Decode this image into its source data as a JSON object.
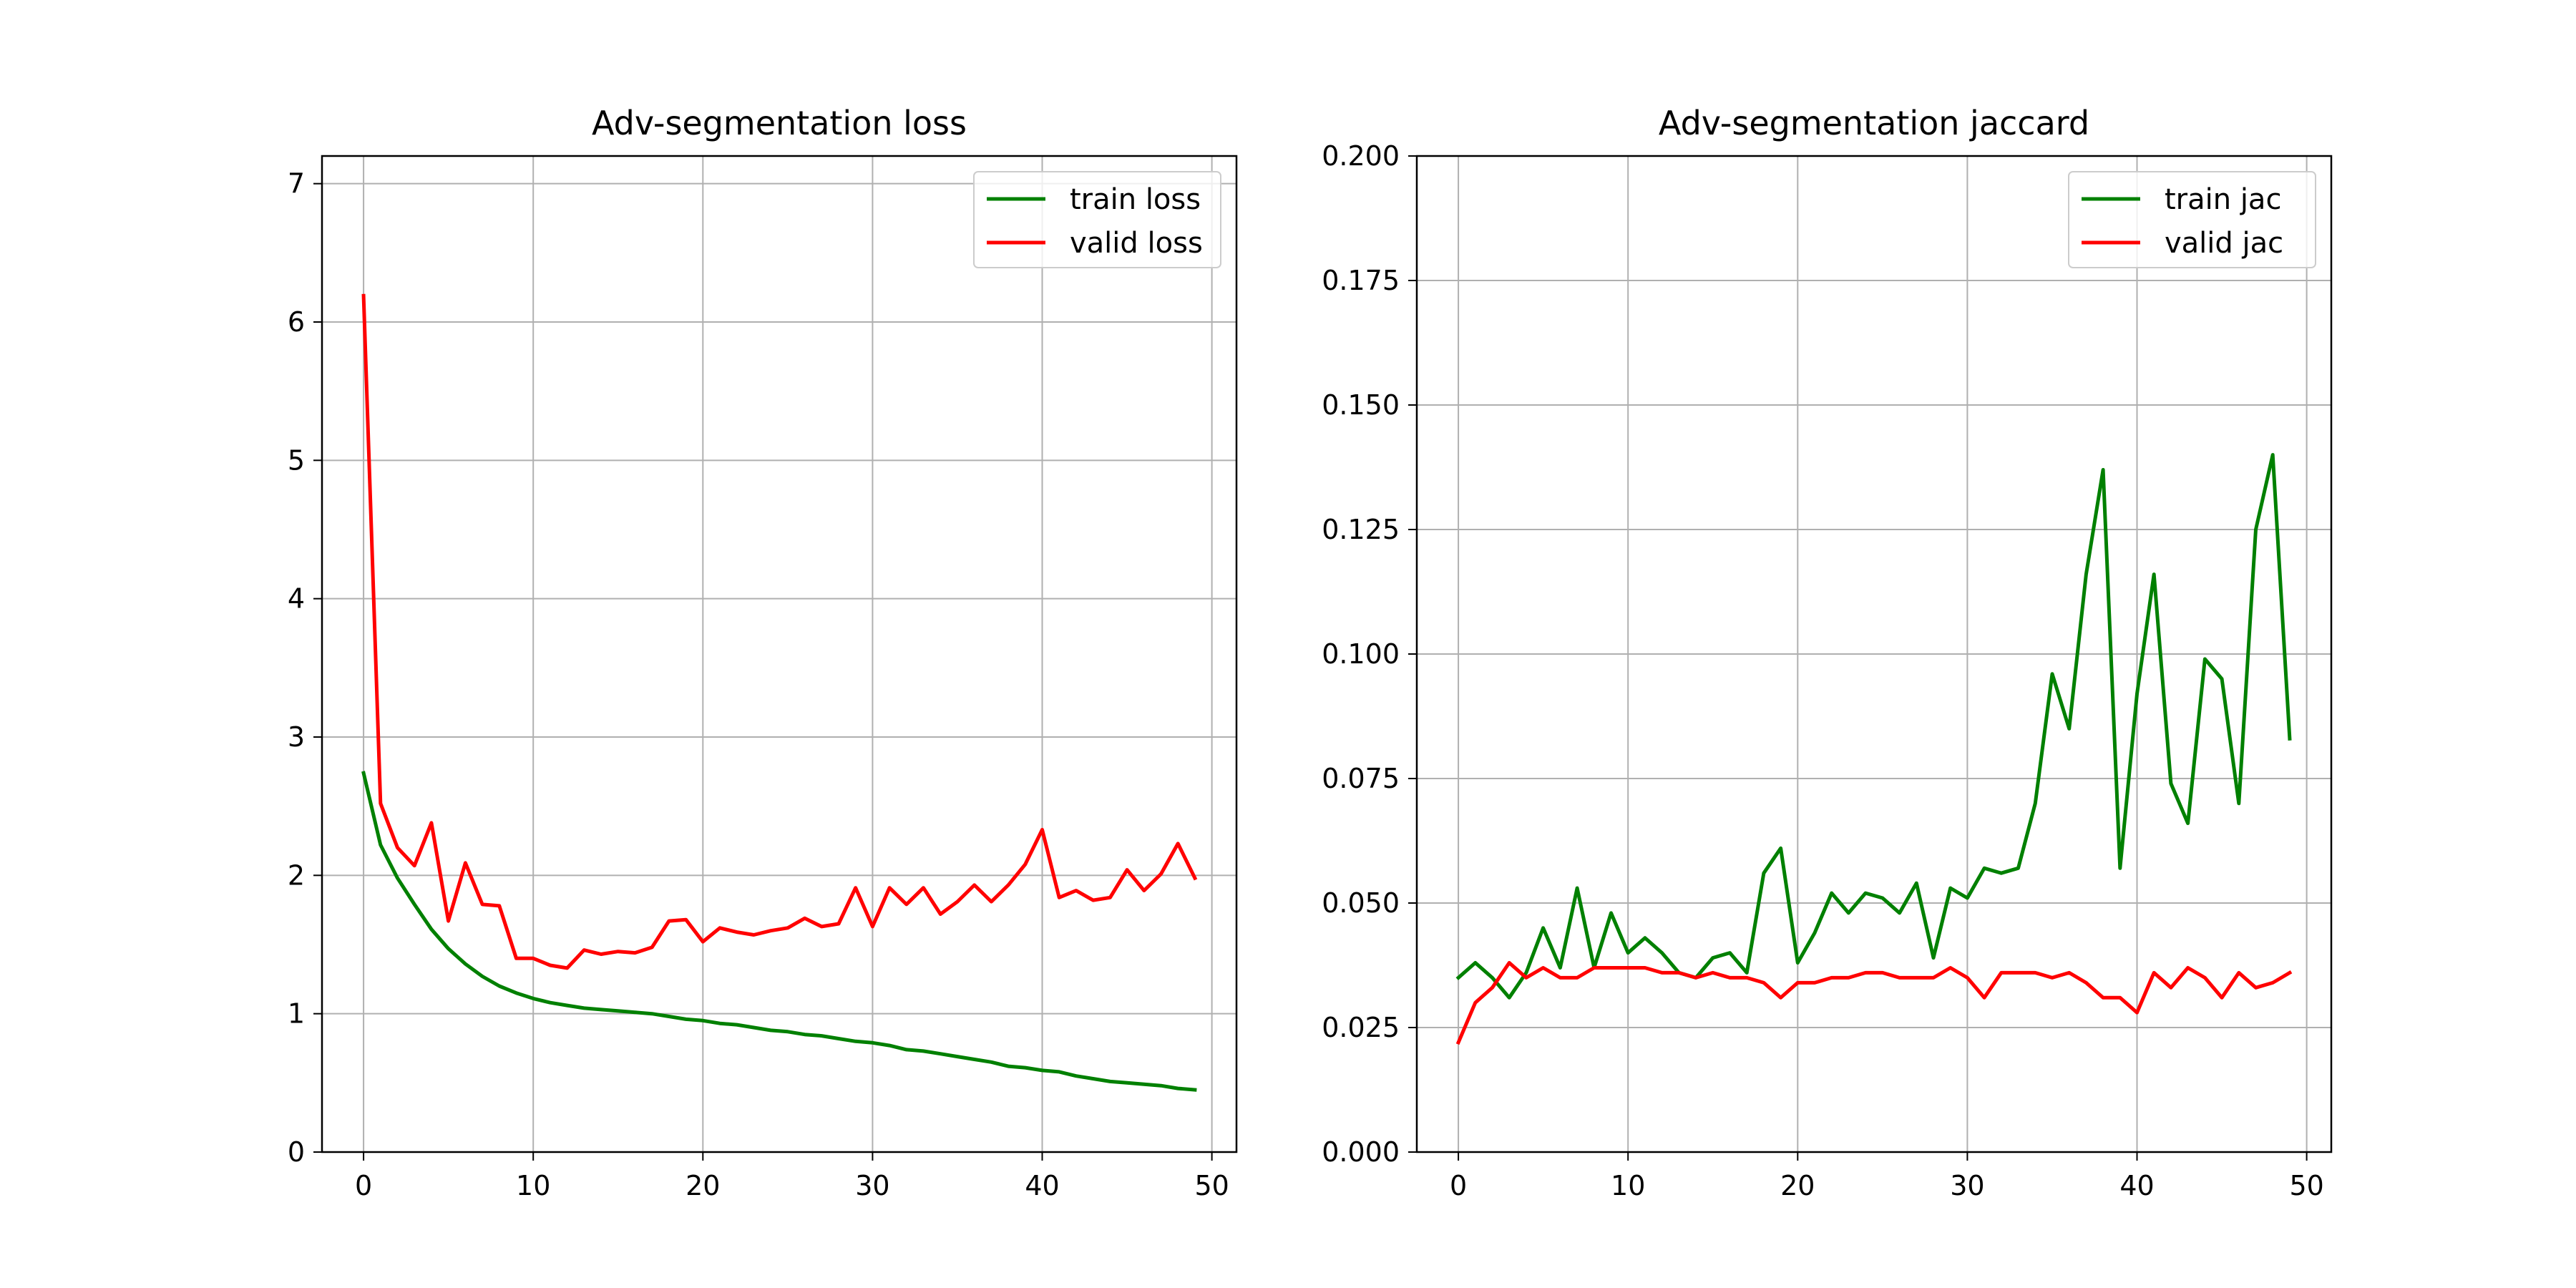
{
  "colors": {
    "train": "#008000",
    "valid": "#ff0000",
    "grid": "#b0b0b0",
    "axes": "#000000"
  },
  "chart_data": [
    {
      "type": "line",
      "title": "Adv-segmentation loss",
      "xlabel": "",
      "ylabel": "",
      "xlim": [
        -2.45,
        51.45
      ],
      "ylim": [
        0,
        7.2
      ],
      "x_ticks": [
        0,
        10,
        20,
        30,
        40,
        50
      ],
      "x_tick_labels": [
        "0",
        "10",
        "20",
        "30",
        "40",
        "50"
      ],
      "y_ticks": [
        0,
        1,
        2,
        3,
        4,
        5,
        6,
        7
      ],
      "y_tick_labels": [
        "0",
        "1",
        "2",
        "3",
        "4",
        "5",
        "6",
        "7"
      ],
      "grid": true,
      "legend_position": "top-right",
      "x": [
        0,
        1,
        2,
        3,
        4,
        5,
        6,
        7,
        8,
        9,
        10,
        11,
        12,
        13,
        14,
        15,
        16,
        17,
        18,
        19,
        20,
        21,
        22,
        23,
        24,
        25,
        26,
        27,
        28,
        29,
        30,
        31,
        32,
        33,
        34,
        35,
        36,
        37,
        38,
        39,
        40,
        41,
        42,
        43,
        44,
        45,
        46,
        47,
        48,
        49
      ],
      "series": [
        {
          "name": "train loss",
          "color": "#008000",
          "values": [
            2.74,
            2.22,
            1.98,
            1.79,
            1.61,
            1.47,
            1.36,
            1.27,
            1.2,
            1.15,
            1.11,
            1.08,
            1.06,
            1.04,
            1.03,
            1.02,
            1.01,
            1.0,
            0.98,
            0.96,
            0.95,
            0.93,
            0.92,
            0.9,
            0.88,
            0.87,
            0.85,
            0.84,
            0.82,
            0.8,
            0.79,
            0.77,
            0.74,
            0.73,
            0.71,
            0.69,
            0.67,
            0.65,
            0.62,
            0.61,
            0.59,
            0.58,
            0.55,
            0.53,
            0.51,
            0.5,
            0.49,
            0.48,
            0.46,
            0.45
          ]
        },
        {
          "name": "valid loss",
          "color": "#ff0000",
          "values": [
            6.19,
            2.52,
            2.2,
            2.07,
            2.38,
            1.67,
            2.09,
            1.79,
            1.78,
            1.4,
            1.4,
            1.35,
            1.33,
            1.46,
            1.43,
            1.45,
            1.44,
            1.48,
            1.67,
            1.68,
            1.52,
            1.62,
            1.59,
            1.57,
            1.6,
            1.62,
            1.69,
            1.63,
            1.65,
            1.91,
            1.63,
            1.91,
            1.79,
            1.91,
            1.72,
            1.81,
            1.93,
            1.81,
            1.93,
            2.08,
            2.33,
            1.84,
            1.89,
            1.82,
            1.84,
            2.04,
            1.89,
            2.01,
            2.23,
            1.98
          ]
        }
      ]
    },
    {
      "type": "line",
      "title": "Adv-segmentation jaccard",
      "xlabel": "",
      "ylabel": "",
      "xlim": [
        -2.45,
        51.45
      ],
      "ylim": [
        0,
        0.2
      ],
      "x_ticks": [
        0,
        10,
        20,
        30,
        40,
        50
      ],
      "x_tick_labels": [
        "0",
        "10",
        "20",
        "30",
        "40",
        "50"
      ],
      "y_ticks": [
        0,
        0.025,
        0.05,
        0.075,
        0.1,
        0.125,
        0.15,
        0.175,
        0.2
      ],
      "y_tick_labels": [
        "0.000",
        "0.025",
        "0.050",
        "0.075",
        "0.100",
        "0.125",
        "0.150",
        "0.175",
        "0.200"
      ],
      "grid": true,
      "legend_position": "top-right",
      "x": [
        0,
        1,
        2,
        3,
        4,
        5,
        6,
        7,
        8,
        9,
        10,
        11,
        12,
        13,
        14,
        15,
        16,
        17,
        18,
        19,
        20,
        21,
        22,
        23,
        24,
        25,
        26,
        27,
        28,
        29,
        30,
        31,
        32,
        33,
        34,
        35,
        36,
        37,
        38,
        39,
        40,
        41,
        42,
        43,
        44,
        45,
        46,
        47,
        48,
        49
      ],
      "series": [
        {
          "name": "train jac",
          "color": "#008000",
          "values": [
            0.035,
            0.038,
            0.035,
            0.031,
            0.036,
            0.045,
            0.037,
            0.053,
            0.037,
            0.048,
            0.04,
            0.043,
            0.04,
            0.036,
            0.035,
            0.039,
            0.04,
            0.036,
            0.056,
            0.061,
            0.038,
            0.044,
            0.052,
            0.048,
            0.052,
            0.051,
            0.048,
            0.054,
            0.039,
            0.053,
            0.051,
            0.057,
            0.056,
            0.057,
            0.07,
            0.096,
            0.085,
            0.116,
            0.137,
            0.057,
            0.092,
            0.116,
            0.074,
            0.066,
            0.099,
            0.095,
            0.07,
            0.125,
            0.14,
            0.083
          ]
        },
        {
          "name": "valid jac",
          "color": "#ff0000",
          "values": [
            0.022,
            0.03,
            0.033,
            0.038,
            0.035,
            0.037,
            0.035,
            0.035,
            0.037,
            0.037,
            0.037,
            0.037,
            0.036,
            0.036,
            0.035,
            0.036,
            0.035,
            0.035,
            0.034,
            0.031,
            0.034,
            0.034,
            0.035,
            0.035,
            0.036,
            0.036,
            0.035,
            0.035,
            0.035,
            0.037,
            0.035,
            0.031,
            0.036,
            0.036,
            0.036,
            0.035,
            0.036,
            0.034,
            0.031,
            0.031,
            0.028,
            0.036,
            0.033,
            0.037,
            0.035,
            0.031,
            0.036,
            0.033,
            0.034,
            0.036
          ]
        }
      ]
    }
  ]
}
